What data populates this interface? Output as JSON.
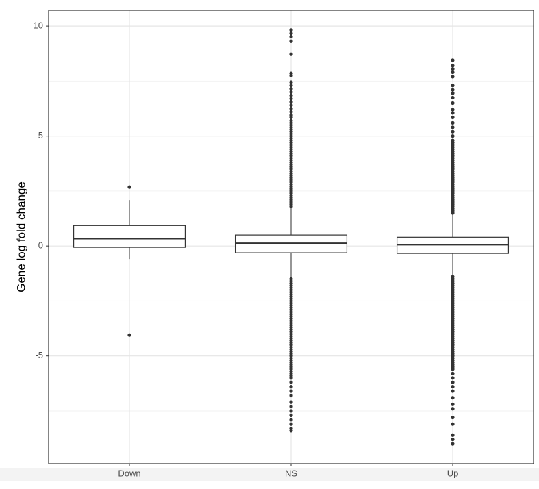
{
  "chart_data": {
    "type": "box",
    "y_label": "Gene log fold change",
    "categories": [
      "Down",
      "NS",
      "Up"
    ],
    "boxes": [
      {
        "min": -0.59,
        "q1": -0.06,
        "median": 0.34,
        "q3": 0.93,
        "max": 2.09,
        "outliers": [
          2.68,
          -4.05
        ]
      },
      {
        "min": -1.46,
        "q1": -0.31,
        "median": 0.12,
        "q3": 0.5,
        "max": 1.75,
        "outliers": [
          9.82,
          9.67,
          9.52,
          9.31,
          8.72,
          7.85,
          7.75,
          7.45,
          7.3,
          7.15,
          7.0,
          6.85,
          6.7,
          6.55,
          6.4,
          6.25,
          6.1,
          5.95,
          5.85,
          5.7,
          5.6,
          5.5,
          5.4,
          5.3,
          5.2,
          5.1,
          5.0,
          4.9,
          4.8,
          4.7,
          4.6,
          4.5,
          4.4,
          4.3,
          4.2,
          4.1,
          4.0,
          3.9,
          3.8,
          3.7,
          3.6,
          3.5,
          3.4,
          3.3,
          3.2,
          3.1,
          3.0,
          2.9,
          2.8,
          2.7,
          2.6,
          2.5,
          2.4,
          2.3,
          2.2,
          2.1,
          2.0,
          1.9,
          1.8,
          -1.5,
          -1.6,
          -1.7,
          -1.8,
          -1.9,
          -2.0,
          -2.1,
          -2.2,
          -2.3,
          -2.4,
          -2.5,
          -2.6,
          -2.7,
          -2.8,
          -2.9,
          -3.0,
          -3.1,
          -3.2,
          -3.3,
          -3.4,
          -3.5,
          -3.6,
          -3.7,
          -3.8,
          -3.9,
          -4.0,
          -4.1,
          -4.2,
          -4.3,
          -4.4,
          -4.5,
          -4.6,
          -4.7,
          -4.8,
          -4.9,
          -5.0,
          -5.1,
          -5.2,
          -5.3,
          -5.4,
          -5.5,
          -5.6,
          -5.7,
          -5.8,
          -5.9,
          -6.0,
          -6.2,
          -6.4,
          -6.6,
          -6.8,
          -7.1,
          -7.3,
          -7.5,
          -7.7,
          -7.9,
          -8.1,
          -8.3,
          -8.4
        ]
      },
      {
        "min": -1.37,
        "q1": -0.34,
        "median": 0.06,
        "q3": 0.4,
        "max": 1.46,
        "outliers": [
          8.45,
          8.2,
          8.05,
          7.9,
          7.7,
          7.3,
          7.1,
          6.95,
          6.75,
          6.5,
          6.2,
          6.05,
          5.85,
          5.6,
          5.4,
          5.2,
          5.0,
          4.8,
          4.7,
          4.6,
          4.5,
          4.4,
          4.3,
          4.2,
          4.1,
          4.0,
          3.9,
          3.8,
          3.7,
          3.6,
          3.5,
          3.4,
          3.3,
          3.2,
          3.1,
          3.0,
          2.9,
          2.8,
          2.7,
          2.6,
          2.5,
          2.4,
          2.3,
          2.2,
          2.1,
          2.0,
          1.9,
          1.8,
          1.7,
          1.6,
          1.5,
          -1.4,
          -1.5,
          -1.6,
          -1.7,
          -1.8,
          -1.9,
          -2.0,
          -2.1,
          -2.2,
          -2.3,
          -2.4,
          -2.5,
          -2.6,
          -2.7,
          -2.8,
          -2.9,
          -3.0,
          -3.1,
          -3.2,
          -3.3,
          -3.4,
          -3.5,
          -3.6,
          -3.7,
          -3.8,
          -3.9,
          -4.0,
          -4.1,
          -4.2,
          -4.3,
          -4.4,
          -4.5,
          -4.6,
          -4.7,
          -4.8,
          -4.9,
          -5.0,
          -5.1,
          -5.2,
          -5.3,
          -5.4,
          -5.5,
          -5.6,
          -5.8,
          -6.0,
          -6.2,
          -6.4,
          -6.6,
          -6.9,
          -7.2,
          -7.4,
          -7.8,
          -8.1,
          -8.6,
          -8.8,
          -9.0
        ]
      }
    ],
    "color": "#333333",
    "ylim": [
      -9.9,
      10.72
    ],
    "yticks": [
      -5,
      0,
      5,
      10
    ],
    "minor_yticks": [
      -7.5,
      -2.5,
      2.5,
      7.5
    ],
    "grid": true
  }
}
